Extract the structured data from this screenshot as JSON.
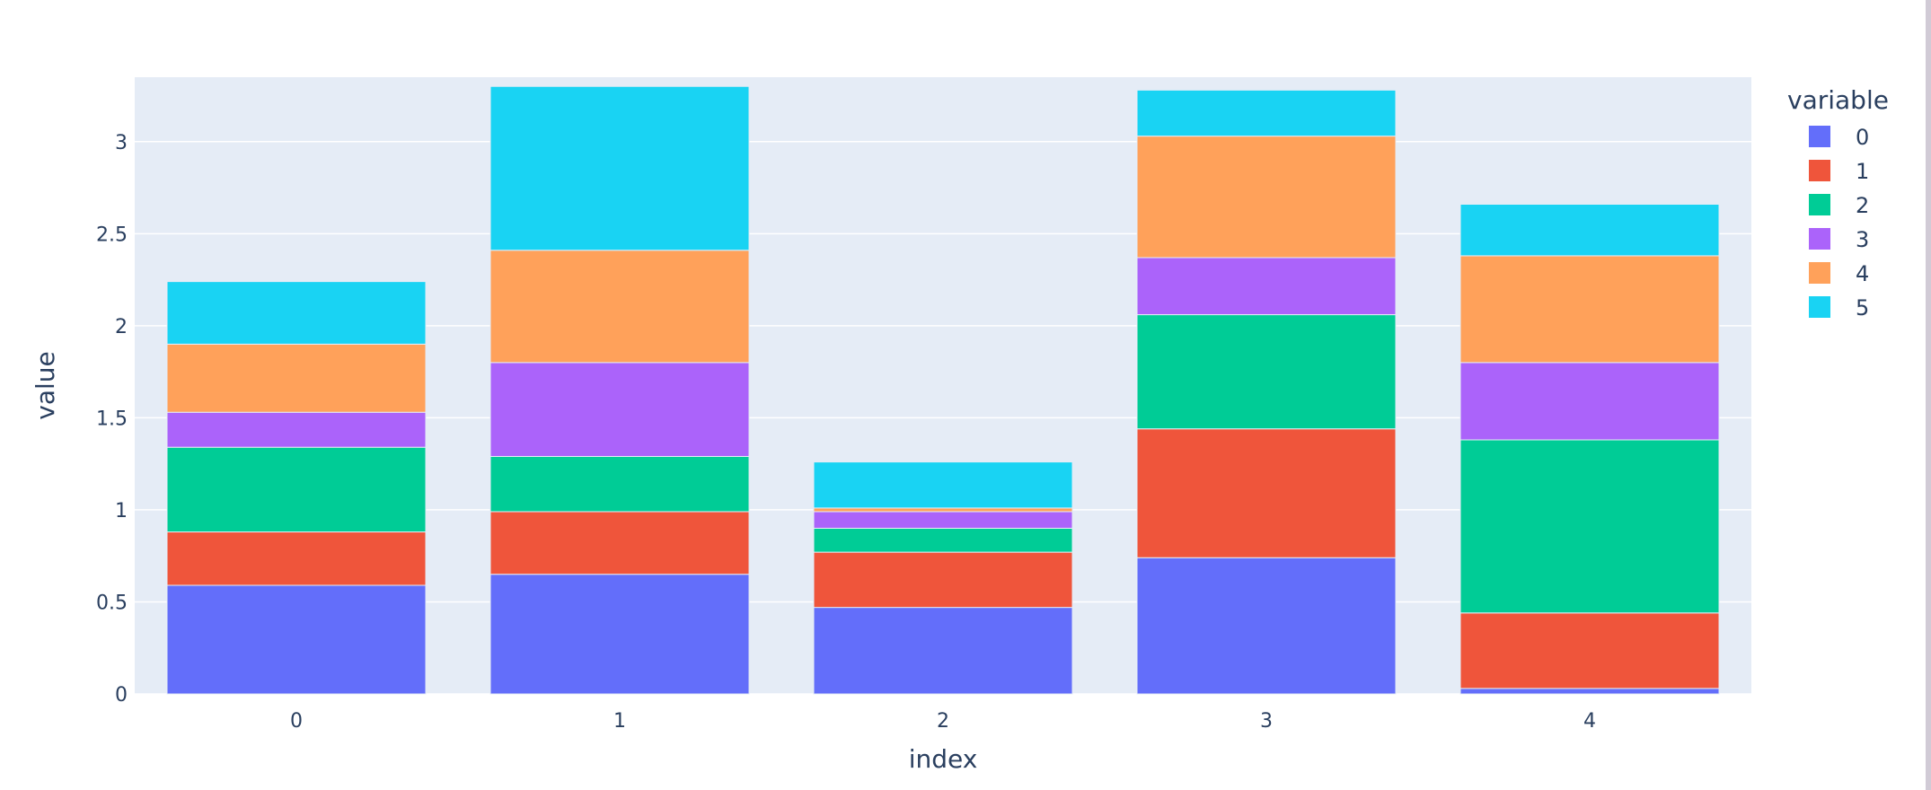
{
  "chart_data": {
    "type": "bar",
    "stacked": true,
    "categories": [
      "0",
      "1",
      "2",
      "3",
      "4"
    ],
    "xlabel": "index",
    "ylabel": "value",
    "ylim": [
      0,
      3.35
    ],
    "yticks": [
      0,
      0.5,
      1,
      1.5,
      2,
      2.5,
      3
    ],
    "ytick_labels": [
      "0",
      "0.5",
      "1",
      "1.5",
      "2",
      "2.5",
      "3"
    ],
    "grid": true,
    "legend": {
      "title": "variable",
      "placement": "right"
    },
    "series": [
      {
        "name": "0",
        "color": "#636efa",
        "values": [
          0.59,
          0.65,
          0.47,
          0.74,
          0.03
        ]
      },
      {
        "name": "1",
        "color": "#EF553B",
        "values": [
          0.29,
          0.34,
          0.3,
          0.7,
          0.41
        ]
      },
      {
        "name": "2",
        "color": "#00cc96",
        "values": [
          0.46,
          0.3,
          0.13,
          0.62,
          0.94
        ]
      },
      {
        "name": "3",
        "color": "#ab63fa",
        "values": [
          0.19,
          0.51,
          0.09,
          0.31,
          0.42
        ]
      },
      {
        "name": "4",
        "color": "#FFA15A",
        "values": [
          0.37,
          0.61,
          0.02,
          0.66,
          0.58
        ]
      },
      {
        "name": "5",
        "color": "#19d3f3",
        "values": [
          0.34,
          0.89,
          0.25,
          0.25,
          0.28
        ]
      }
    ]
  }
}
